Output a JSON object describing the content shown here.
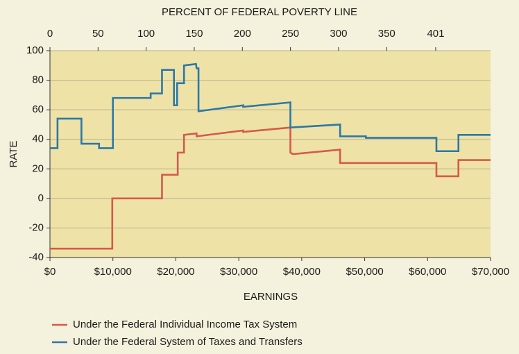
{
  "chart_data": {
    "type": "line",
    "title": "PERCENT OF FEDERAL POVERTY LINE",
    "xlabel": "EARNINGS",
    "ylabel": "RATE",
    "xlim": [
      0,
      70000
    ],
    "xticks": [
      {
        "value": 0,
        "label": "$0"
      },
      {
        "value": 10000,
        "label": "$10,000"
      },
      {
        "value": 20000,
        "label": "$20,000"
      },
      {
        "value": 30000,
        "label": "$30,000"
      },
      {
        "value": 40000,
        "label": "$40,000"
      },
      {
        "value": 50000,
        "label": "$50,000"
      },
      {
        "value": 60000,
        "label": "$60,000"
      },
      {
        "value": 70000,
        "label": "$70,000"
      }
    ],
    "x2lim": [
      0,
      458
    ],
    "x2ticks": [
      0,
      50,
      100,
      150,
      200,
      250,
      300,
      350,
      401
    ],
    "ylim": [
      -40,
      100
    ],
    "yticks": [
      100,
      80,
      60,
      40,
      20,
      0,
      -20,
      -40
    ],
    "grid": true,
    "series": [
      {
        "name": "Under the Federal Individual Income Tax System",
        "color": "#d45a4c",
        "x": [
          0,
          9900,
          9900,
          17800,
          17800,
          20300,
          20300,
          21300,
          21300,
          23300,
          23300,
          30700,
          30700,
          38200,
          38200,
          38600,
          46100,
          46100,
          61400,
          61400,
          64900,
          64900,
          70000
        ],
        "values": [
          -34,
          -34,
          0,
          0,
          16,
          16,
          31,
          31,
          43,
          44,
          42,
          46,
          45,
          48,
          31,
          30,
          33,
          24,
          24,
          15,
          15,
          26,
          26
        ]
      },
      {
        "name": "Under the Federal System of Taxes and Transfers",
        "color": "#2b78a8",
        "x": [
          0,
          1200,
          1200,
          5000,
          5000,
          7800,
          7800,
          10000,
          10000,
          16000,
          16000,
          17800,
          17800,
          19700,
          19700,
          20200,
          20200,
          21300,
          21300,
          23200,
          23300,
          23600,
          23600,
          30700,
          30700,
          38200,
          38200,
          46100,
          46100,
          50200,
          50200,
          61400,
          61400,
          64900,
          64900,
          70000
        ],
        "values": [
          34,
          34,
          54,
          54,
          37,
          37,
          34,
          34,
          68,
          68,
          71,
          71,
          87,
          87,
          63,
          63,
          78,
          78,
          90,
          91,
          88,
          88,
          59,
          63,
          62,
          65,
          48,
          50,
          42,
          42,
          41,
          41,
          32,
          32,
          43,
          43
        ]
      }
    ]
  }
}
